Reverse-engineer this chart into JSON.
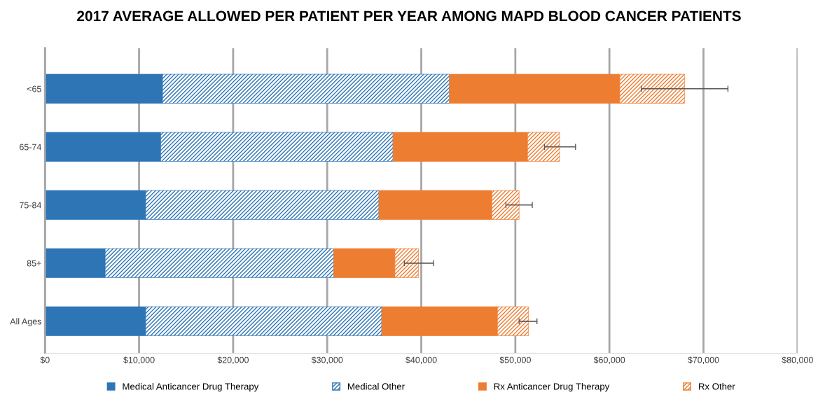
{
  "chart_data": {
    "type": "bar",
    "orientation": "horizontal",
    "stacked": true,
    "title": "2017 AVERAGE ALLOWED PER PATIENT PER YEAR AMONG MAPD BLOOD CANCER PATIENTS",
    "categories": [
      "<65",
      "65-74",
      "75-84",
      "85+",
      "All Ages"
    ],
    "series": [
      {
        "name": "Medical Anticancer Drug Therapy",
        "color": "#2e75b6",
        "values": [
          12500,
          12300,
          10700,
          6400,
          10700
        ]
      },
      {
        "name": "Medical Other",
        "color": "#2e75b6",
        "values": [
          30500,
          24700,
          24800,
          24300,
          25100
        ]
      },
      {
        "name": "Rx Anticancer Drug Therapy",
        "color": "#ed7d31",
        "values": [
          18100,
          14300,
          12000,
          6500,
          12300
        ]
      },
      {
        "name": "Rx Other",
        "color": "#ed7d31",
        "values": [
          6900,
          3400,
          2900,
          2500,
          3300
        ],
        "errors": [
          [
            63400,
            72600
          ],
          [
            53100,
            56400
          ],
          [
            49000,
            51800
          ],
          [
            38200,
            41300
          ],
          [
            50400,
            52300
          ]
        ]
      }
    ],
    "xlim": [
      0,
      80000
    ],
    "xticks": [
      {
        "value": 0,
        "label": "$0"
      },
      {
        "value": 10000,
        "label": "$10,000"
      },
      {
        "value": 20000,
        "label": "$20,000"
      },
      {
        "value": 30000,
        "label": "$30,000"
      },
      {
        "value": 40000,
        "label": "$40,000"
      },
      {
        "value": 50000,
        "label": "$50,000"
      },
      {
        "value": 60000,
        "label": "$60,000"
      },
      {
        "value": 70000,
        "label": "$70,000"
      },
      {
        "value": 80000,
        "label": "$80,000"
      }
    ],
    "grid": "x",
    "legend": "bottom"
  }
}
